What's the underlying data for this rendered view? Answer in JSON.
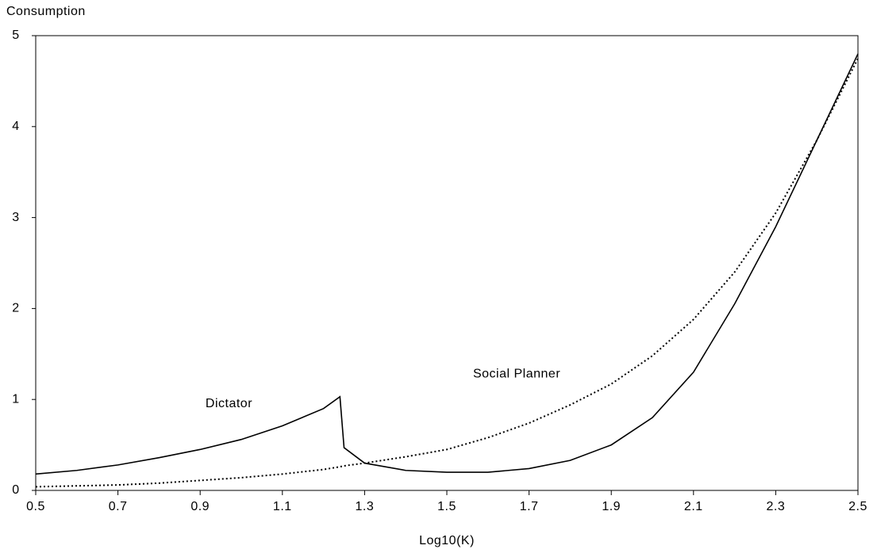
{
  "chart_data": {
    "type": "line",
    "y_label": "Consumption",
    "x_label": "Log10(K)",
    "x": [
      0.5,
      0.6,
      0.7,
      0.8,
      0.9,
      1.0,
      1.1,
      1.2,
      1.24,
      1.25,
      1.3,
      1.4,
      1.5,
      1.6,
      1.7,
      1.8,
      1.9,
      2.0,
      2.1,
      2.2,
      2.3,
      2.4,
      2.5
    ],
    "series": [
      {
        "name": "Dictator",
        "color": "#000000",
        "style": "solid",
        "values": [
          0.18,
          0.22,
          0.28,
          0.36,
          0.45,
          0.56,
          0.71,
          0.9,
          1.03,
          0.47,
          0.3,
          0.22,
          0.2,
          0.2,
          0.24,
          0.33,
          0.5,
          0.8,
          1.3,
          2.05,
          2.9,
          3.85,
          4.8
        ]
      },
      {
        "name": "Social Planner",
        "color": "#000000",
        "style": "dotted",
        "values": [
          0.04,
          0.05,
          0.06,
          0.08,
          0.11,
          0.14,
          0.18,
          0.23,
          0.26,
          0.27,
          0.3,
          0.37,
          0.45,
          0.58,
          0.74,
          0.94,
          1.17,
          1.48,
          1.88,
          2.4,
          3.05,
          3.85,
          4.75
        ]
      }
    ],
    "xlim": [
      0.5,
      2.5
    ],
    "xticks": [
      0.5,
      0.7,
      0.9,
      1.1,
      1.3,
      1.5,
      1.7,
      1.9,
      2.1,
      2.3,
      2.5
    ],
    "ylim": [
      0,
      5
    ],
    "yticks": [
      0,
      1,
      2,
      3,
      4,
      5
    ],
    "grid": false
  }
}
